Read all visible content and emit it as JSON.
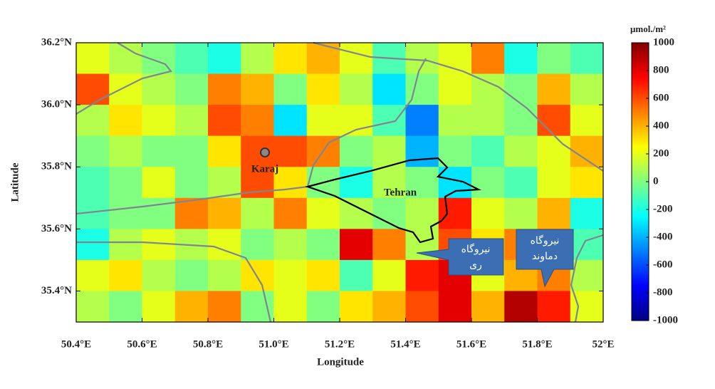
{
  "chart_data": {
    "type": "heatmap",
    "xlabel": "Longitude",
    "ylabel": "Latitude",
    "xlim": [
      50.4,
      52.0
    ],
    "ylim": [
      35.3,
      36.2
    ],
    "xticks": [
      {
        "value": 50.4,
        "label": "50.4°E"
      },
      {
        "value": 50.6,
        "label": "50.6°E"
      },
      {
        "value": 50.8,
        "label": "50.8°E"
      },
      {
        "value": 51.0,
        "label": "51.0°E"
      },
      {
        "value": 51.2,
        "label": "51.2°E"
      },
      {
        "value": 51.4,
        "label": "51.4°E"
      },
      {
        "value": 51.6,
        "label": "51.6°E"
      },
      {
        "value": 51.8,
        "label": "51.8°E"
      },
      {
        "value": 52.0,
        "label": "52°E"
      }
    ],
    "yticks": [
      {
        "value": 35.4,
        "label": "35.4°N"
      },
      {
        "value": 35.6,
        "label": "35.6°N"
      },
      {
        "value": 35.8,
        "label": "35.8°N"
      },
      {
        "value": 36.0,
        "label": "36.0°N"
      },
      {
        "value": 36.2,
        "label": "36.2°N"
      }
    ],
    "colormap": "jet",
    "clim": [
      -1000,
      1000
    ],
    "colorbar_label": "μmol./m²",
    "cticks": [
      -1000,
      -800,
      -600,
      -400,
      -200,
      0,
      200,
      400,
      600,
      800,
      1000
    ],
    "values": [
      [
        200,
        100,
        0,
        -100,
        -200,
        100,
        300,
        400,
        200,
        -100,
        100,
        200,
        500,
        -200,
        0,
        -100
      ],
      [
        600,
        200,
        100,
        0,
        500,
        400,
        0,
        300,
        100,
        -300,
        0,
        200,
        100,
        0,
        400,
        100
      ],
      [
        100,
        300,
        200,
        100,
        600,
        500,
        -300,
        200,
        200,
        -100,
        -500,
        100,
        100,
        0,
        600,
        200
      ],
      [
        0,
        100,
        0,
        0,
        300,
        600,
        600,
        500,
        0,
        100,
        -400,
        0,
        -100,
        100,
        200,
        400
      ],
      [
        -100,
        0,
        200,
        0,
        100,
        600,
        300,
        0,
        -200,
        100,
        0,
        -300,
        0,
        -100,
        200,
        300
      ],
      [
        -100,
        0,
        0,
        500,
        400,
        100,
        500,
        200,
        100,
        0,
        100,
        700,
        200,
        100,
        400,
        -200
      ],
      [
        -200,
        100,
        200,
        100,
        200,
        0,
        100,
        0,
        800,
        500,
        100,
        600,
        300,
        500,
        700,
        -100
      ],
      [
        200,
        300,
        100,
        0,
        100,
        300,
        200,
        300,
        -100,
        200,
        700,
        800,
        200,
        400,
        500,
        100
      ],
      [
        100,
        0,
        200,
        400,
        500,
        0,
        200,
        0,
        300,
        400,
        600,
        800,
        400,
        900,
        700,
        200
      ]
    ],
    "annotations": {
      "karaj": "Karaj",
      "tehran": "Tehran",
      "callout_rey": [
        "نیروگاه",
        "ری"
      ],
      "callout_damavand": [
        "نیروگاه",
        "دماوند"
      ]
    }
  }
}
